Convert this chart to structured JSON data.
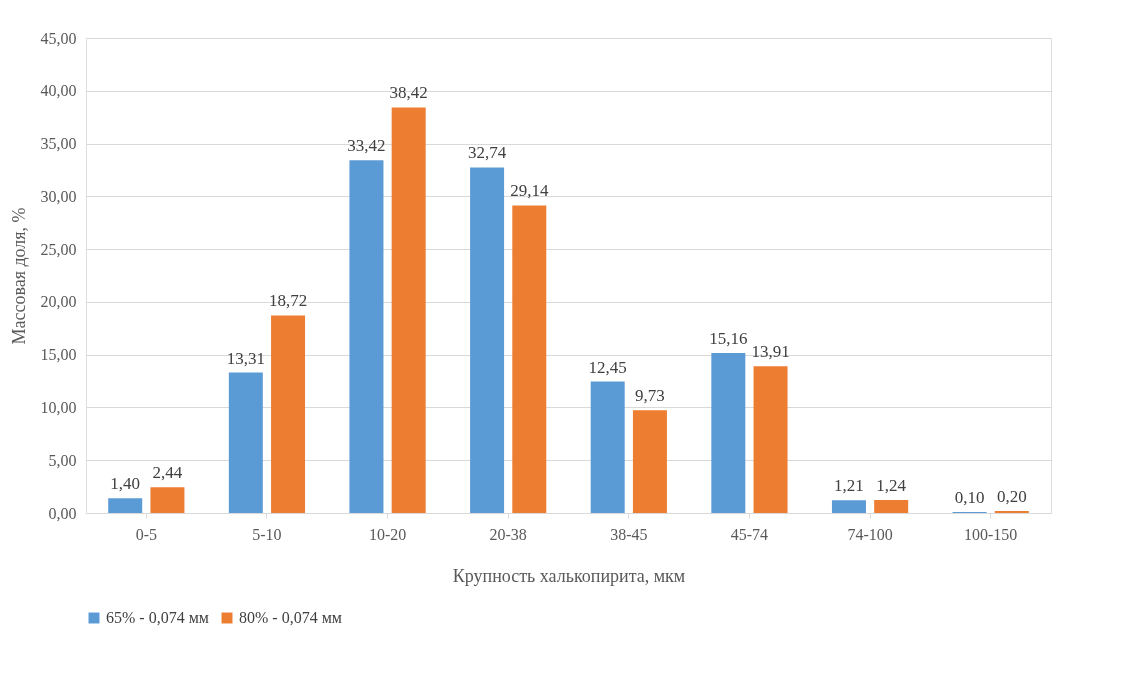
{
  "chart_data": {
    "type": "bar",
    "xlabel": "Крупность халькопирита, мкм",
    "ylabel": "Массовая доля, %",
    "categories": [
      "0-5",
      "5-10",
      "10-20",
      "20-38",
      "38-45",
      "45-74",
      "74-100",
      "100-150"
    ],
    "series": [
      {
        "name": "65% - 0,074 мм",
        "color": "#5b9bd5",
        "values": [
          1.4,
          13.31,
          33.42,
          32.74,
          12.45,
          15.16,
          1.21,
          0.1
        ],
        "value_labels": [
          "1,40",
          "13,31",
          "33,42",
          "32,74",
          "12,45",
          "15,16",
          "1,21",
          "0,10"
        ]
      },
      {
        "name": "80% - 0,074 мм",
        "color": "#ed7d31",
        "values": [
          2.44,
          18.72,
          38.42,
          29.14,
          9.73,
          13.91,
          1.24,
          0.2
        ],
        "value_labels": [
          "2,44",
          "18,72",
          "38,42",
          "29,14",
          "9,73",
          "13,91",
          "1,24",
          "0,20"
        ]
      }
    ],
    "ylim": [
      0,
      45
    ],
    "yticks": [
      {
        "value": 0,
        "label": "0,00"
      },
      {
        "value": 5,
        "label": "5,00"
      },
      {
        "value": 10,
        "label": "10,00"
      },
      {
        "value": 15,
        "label": "15,00"
      },
      {
        "value": 20,
        "label": "20,00"
      },
      {
        "value": 25,
        "label": "25,00"
      },
      {
        "value": 30,
        "label": "30,00"
      },
      {
        "value": 35,
        "label": "35,00"
      },
      {
        "value": 40,
        "label": "40,00"
      },
      {
        "value": 45,
        "label": "45,00"
      }
    ],
    "grid": "y",
    "legend": "bottom"
  }
}
